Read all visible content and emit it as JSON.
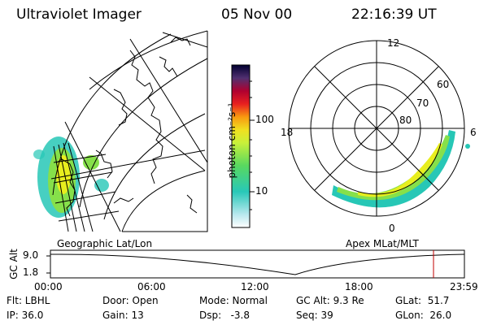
{
  "header": {
    "instrument": "Ultraviolet Imager",
    "date": "05 Nov 00",
    "time": "22:16:39 UT"
  },
  "colorbar": {
    "unit_label": "photon cm⁻²s⁻¹",
    "tick_100": "100",
    "tick_10": "10"
  },
  "geo_panel": {
    "label": "Geographic Lat/Lon"
  },
  "polar_panel": {
    "label": "Apex MLat/MLT",
    "mlt_12": "12",
    "mlt_18": "18",
    "mlt_6": "6",
    "mlt_0": "0",
    "lat_60": "60",
    "lat_70": "70",
    "lat_80": "80"
  },
  "timeline": {
    "ylabel": "GC Alt",
    "y_top": "9.0",
    "y_bottom": "1.8",
    "ticks": [
      "00:00",
      "06:00",
      "12:00",
      "18:00",
      "23:59"
    ]
  },
  "info": {
    "filter": "Flt: LBHL",
    "door": "Door: Open",
    "mode": "Mode: Normal",
    "gc_alt": "GC Alt: 9.3 Re",
    "glat": "GLat:  51.7",
    "ip": "IP: 36.0",
    "gain": "Gain: 13",
    "dsp": "Dsp:   -3.8",
    "seq": "Seq: 39",
    "glon": "GLon:  26.0"
  },
  "colors": {
    "aurora_outer": "#27c7b6",
    "aurora_mid": "#86e04a",
    "aurora_inner": "#e8ee1e",
    "current_time_marker": "#c00000"
  }
}
